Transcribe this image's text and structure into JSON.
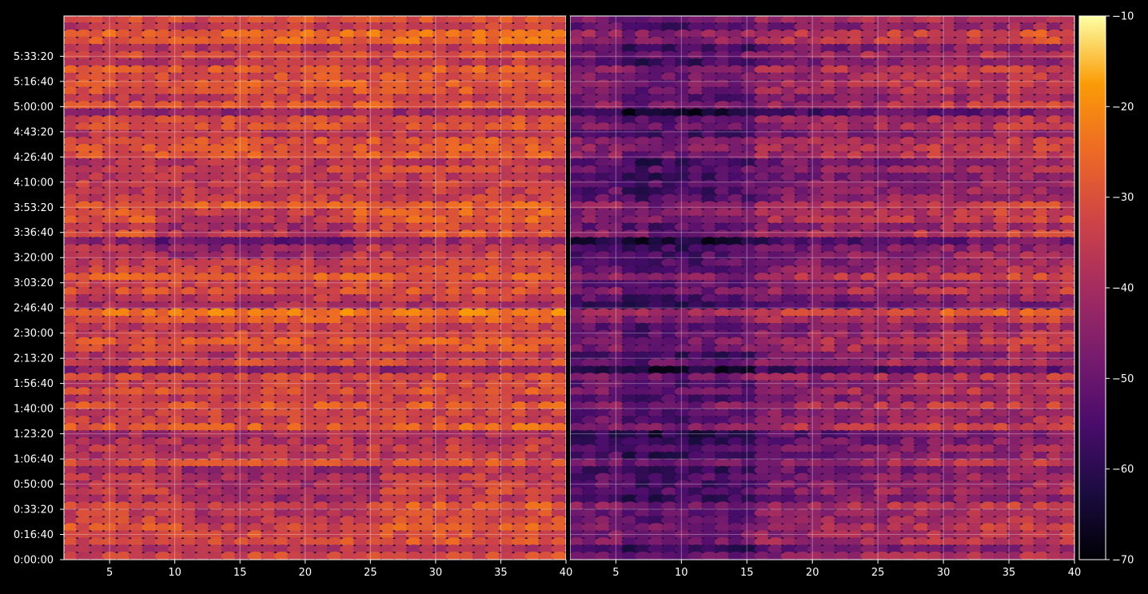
{
  "chart_data": {
    "type": "heatmap",
    "panels": [
      {
        "x_range": [
          1.5,
          40
        ],
        "x_ticks": [
          "5",
          "10",
          "15",
          "20",
          "25",
          "30",
          "35",
          "40"
        ],
        "x_tick_values": [
          5,
          10,
          15,
          20,
          25,
          30,
          35,
          40
        ]
      },
      {
        "x_range": [
          1.5,
          40
        ],
        "x_ticks": [
          "5",
          "10",
          "15",
          "20",
          "25",
          "30",
          "35",
          "40"
        ],
        "x_tick_values": [
          5,
          10,
          15,
          20,
          25,
          30,
          35,
          40
        ]
      }
    ],
    "y_range_seconds": [
      0,
      21600
    ],
    "y_ticks": [
      "0:00:00",
      "0:16:40",
      "0:33:20",
      "0:50:00",
      "1:06:40",
      "1:23:20",
      "1:40:00",
      "1:56:40",
      "2:13:20",
      "2:30:00",
      "2:46:40",
      "3:03:20",
      "3:20:00",
      "3:36:40",
      "3:53:20",
      "4:10:00",
      "4:26:40",
      "4:43:20",
      "5:00:00",
      "5:16:40",
      "5:33:20"
    ],
    "colorbar": {
      "colormap": "inferno",
      "range": [
        -70,
        -10
      ],
      "ticks": [
        "−10",
        "−20",
        "−30",
        "−40",
        "−50",
        "−60",
        "−70"
      ],
      "tick_values": [
        -10,
        -20,
        -30,
        -40,
        -50,
        -60,
        -70
      ]
    },
    "grid": true,
    "background": "#000000"
  }
}
